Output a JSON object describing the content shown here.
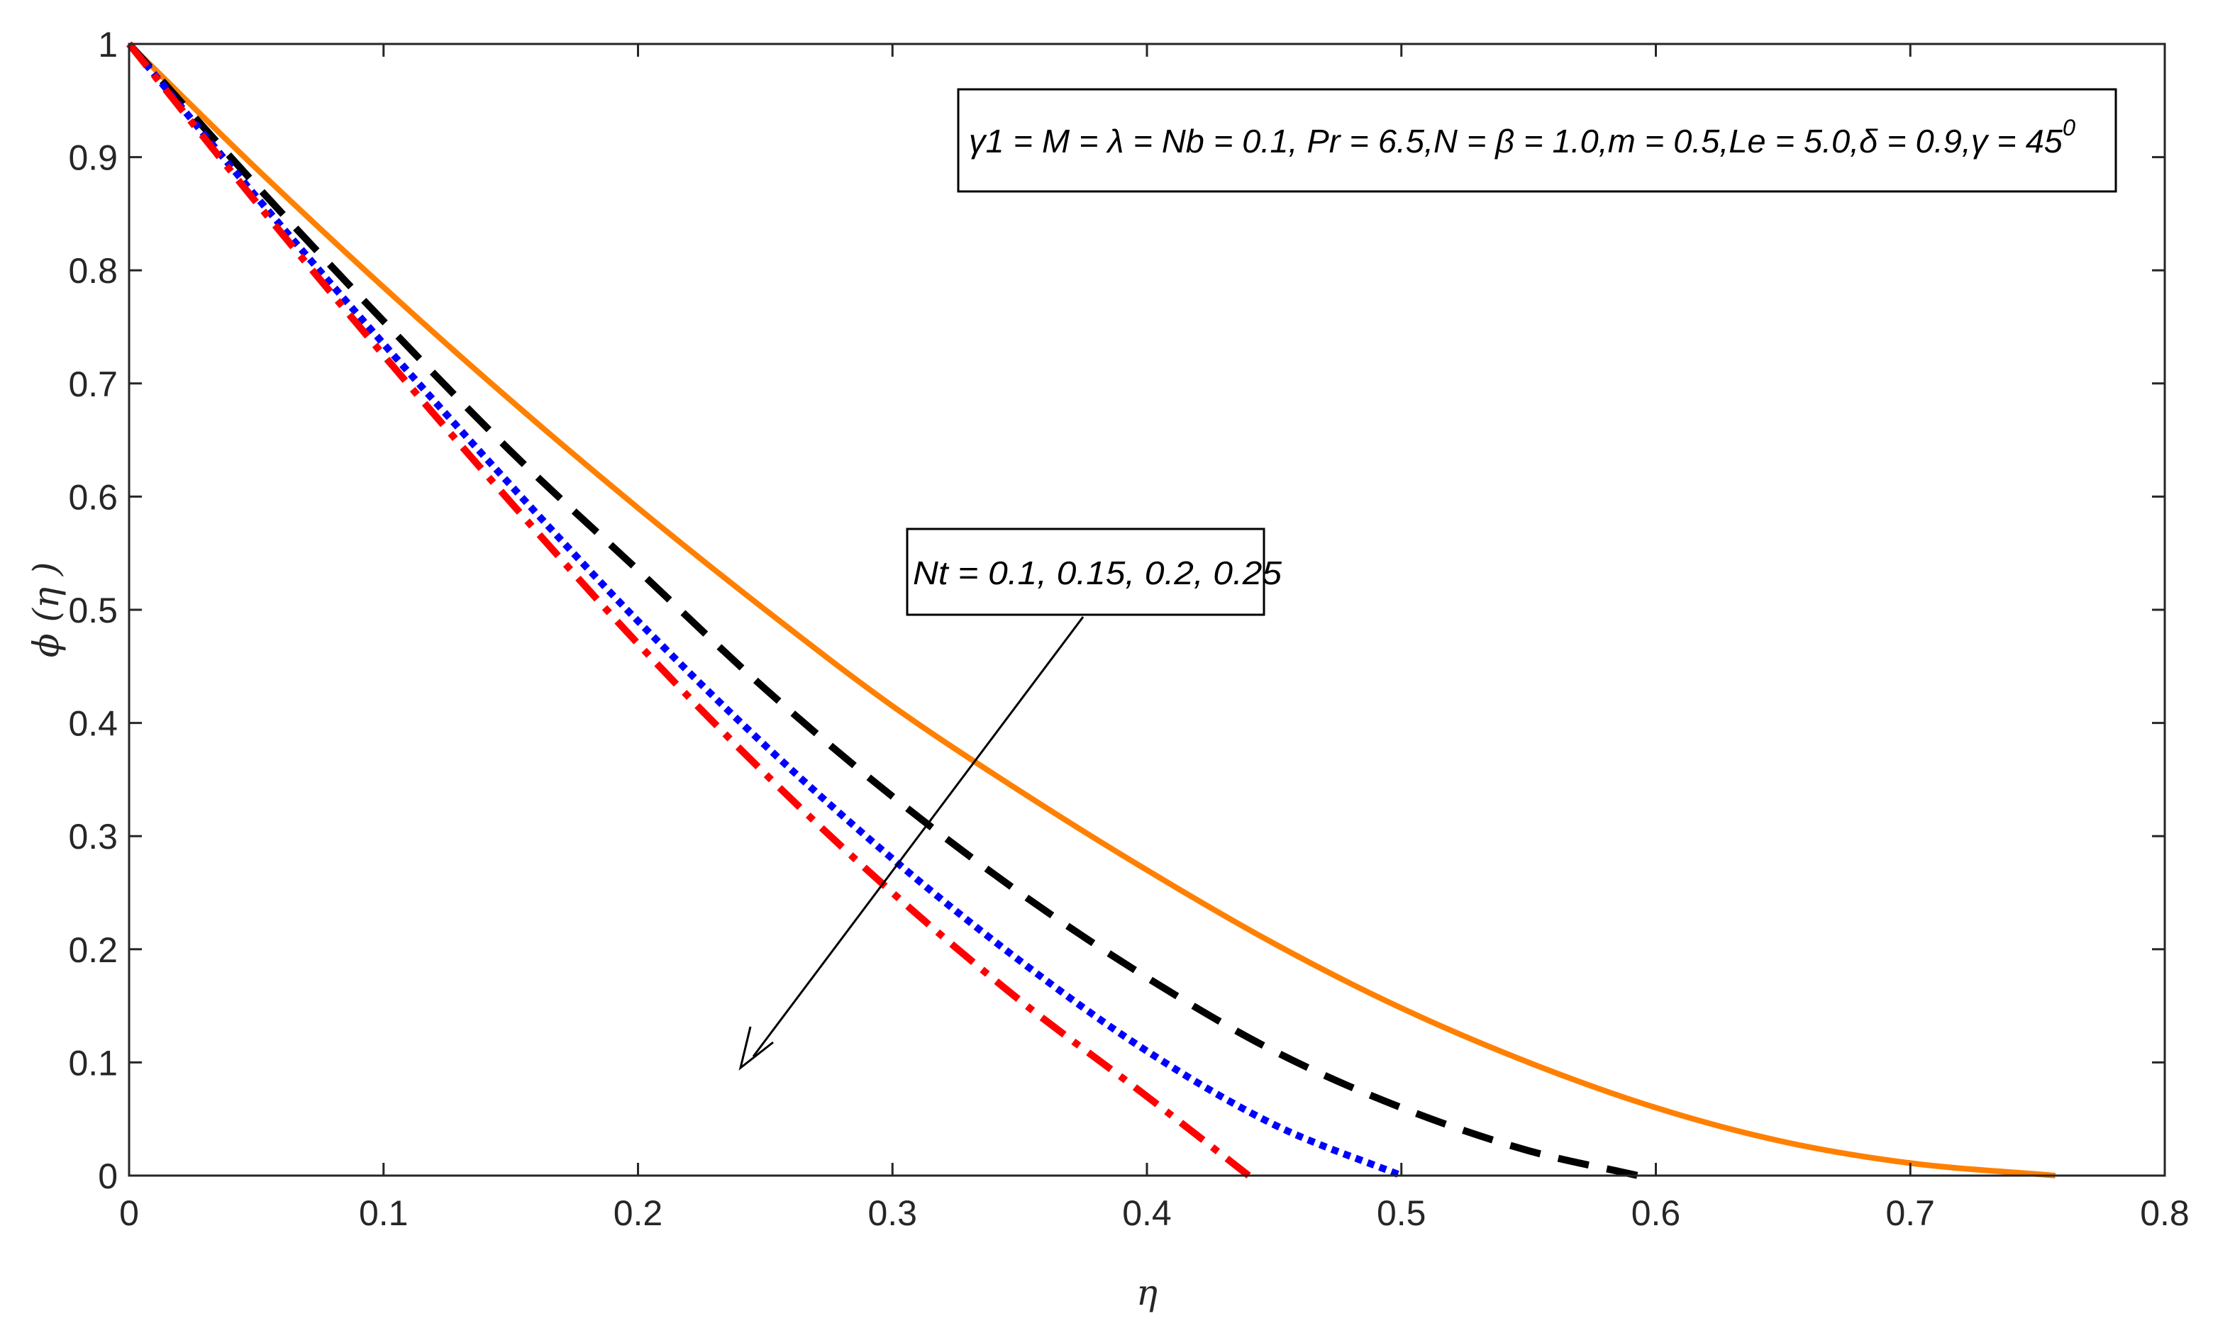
{
  "chart_data": {
    "type": "line",
    "title": "",
    "xlabel": "η",
    "ylabel": "ϕ (η )",
    "xlim": [
      0,
      0.8
    ],
    "ylim": [
      0,
      1
    ],
    "xticks": [
      "0",
      "0.1",
      "0.2",
      "0.3",
      "0.4",
      "0.5",
      "0.6",
      "0.7",
      "0.8"
    ],
    "yticks": [
      "0",
      "0.1",
      "0.2",
      "0.3",
      "0.4",
      "0.5",
      "0.6",
      "0.7",
      "0.8",
      "0.9",
      "1"
    ],
    "grid": false,
    "parameters_text": "γ1 = M = λ = Nb = 0.1, Pr = 6.5,N = β = 1.0,m = 0.5,Le = 5.0,δ = 0.9,γ = 45",
    "parameters_superscript": "0",
    "annotation_text": "Nt = 0.1, 0.15, 0.2, 0.25",
    "series": [
      {
        "color": "#ff8000",
        "style": "solid",
        "x": [
          0,
          0.05,
          0.1,
          0.15,
          0.2,
          0.25,
          0.3,
          0.35,
          0.4,
          0.45,
          0.5,
          0.55,
          0.6,
          0.65,
          0.7,
          0.757
        ],
        "y": [
          1.0,
          0.89,
          0.785,
          0.685,
          0.59,
          0.5,
          0.415,
          0.34,
          0.27,
          0.205,
          0.148,
          0.1,
          0.06,
          0.03,
          0.011,
          0.0
        ]
      },
      {
        "color": "#000000",
        "style": "dashed",
        "x": [
          0,
          0.05,
          0.1,
          0.15,
          0.2,
          0.25,
          0.3,
          0.35,
          0.4,
          0.45,
          0.5,
          0.55,
          0.593
        ],
        "y": [
          1.0,
          0.875,
          0.755,
          0.64,
          0.535,
          0.43,
          0.335,
          0.25,
          0.175,
          0.11,
          0.06,
          0.022,
          0.0
        ]
      },
      {
        "color": "#0000ff",
        "style": "dotted",
        "x": [
          0,
          0.05,
          0.1,
          0.15,
          0.2,
          0.25,
          0.3,
          0.35,
          0.4,
          0.45,
          0.5
        ],
        "y": [
          1.0,
          0.865,
          0.735,
          0.61,
          0.49,
          0.38,
          0.28,
          0.19,
          0.11,
          0.045,
          0.0
        ]
      },
      {
        "color": "#ff0000",
        "style": "dashdot",
        "x": [
          0,
          0.05,
          0.1,
          0.15,
          0.2,
          0.25,
          0.3,
          0.35,
          0.4,
          0.44
        ],
        "y": [
          1.0,
          0.86,
          0.725,
          0.595,
          0.47,
          0.355,
          0.25,
          0.155,
          0.07,
          0.0
        ]
      }
    ]
  }
}
